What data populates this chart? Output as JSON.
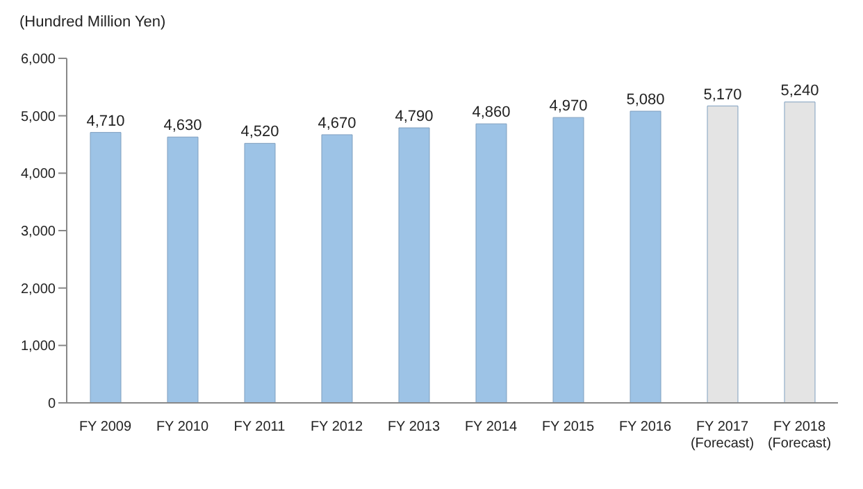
{
  "chart_data": {
    "type": "bar",
    "ylabel": "(Hundred Million Yen)",
    "categories": [
      "FY 2009",
      "FY 2010",
      "FY 2011",
      "FY 2012",
      "FY 2013",
      "FY 2014",
      "FY 2015",
      "FY 2016",
      "FY 2017\n(Forecast)",
      "FY 2018\n(Forecast)"
    ],
    "values": [
      4710,
      4630,
      4520,
      4670,
      4790,
      4860,
      4970,
      5080,
      5170,
      5240
    ],
    "value_labels": [
      "4,710",
      "4,630",
      "4,520",
      "4,670",
      "4,790",
      "4,860",
      "4,970",
      "5,080",
      "5,170",
      "5,240"
    ],
    "colors": [
      "#9dc3e6",
      "#9dc3e6",
      "#9dc3e6",
      "#9dc3e6",
      "#9dc3e6",
      "#9dc3e6",
      "#9dc3e6",
      "#9dc3e6",
      "#e4e4e4",
      "#e4e4e4"
    ],
    "ylim": [
      0,
      6000
    ],
    "yticks": [
      {
        "value": 0,
        "label": "0"
      },
      {
        "value": 1000,
        "label": "1,000"
      },
      {
        "value": 2000,
        "label": "2,000"
      },
      {
        "value": 3000,
        "label": "3,000"
      },
      {
        "value": 4000,
        "label": "4,000"
      },
      {
        "value": 5000,
        "label": "5,000"
      },
      {
        "value": 6000,
        "label": "6,000"
      }
    ],
    "grid": false,
    "legend": false
  }
}
